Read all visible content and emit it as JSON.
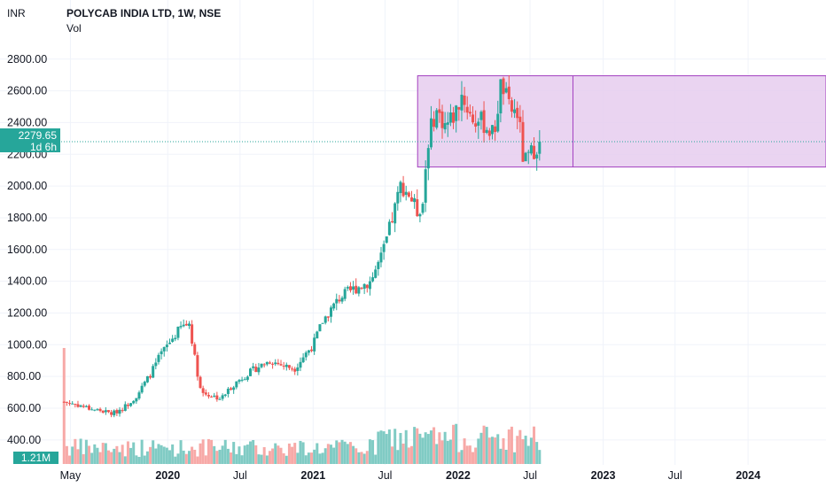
{
  "header": {
    "currency": "INR",
    "title": "POLYCAB INDIA LTD, 1W, NSE",
    "volume_label": "Vol"
  },
  "badges": {
    "last_price": "2279.65",
    "countdown": "1d 6h",
    "volume": "1.21M"
  },
  "colors": {
    "up": "#26a69a",
    "down": "#ef5350",
    "up_volume": "#80cbc4",
    "down_volume": "#f7a9a7",
    "rectangle_fill": "#e6cdee",
    "rectangle_border": "#a340c0",
    "price_line": "#26a69a"
  },
  "chart_data": {
    "type": "candlestick",
    "title": "POLYCAB INDIA LTD, 1W, NSE",
    "ylabel": "INR",
    "ylim": [
      360,
      2860
    ],
    "yticks": [
      "400.00",
      "600.00",
      "800.00",
      "1000.00",
      "1200.00",
      "1400.00",
      "1600.00",
      "1800.00",
      "2000.00",
      "2200.00",
      "2400.00",
      "2600.00",
      "2800.00"
    ],
    "x_range": [
      "2019-04-01",
      "2024-07-15"
    ],
    "xticks": [
      {
        "date": "2019-05-01",
        "label": "May",
        "year": false
      },
      {
        "date": "2020-01-01",
        "label": "2020",
        "year": true
      },
      {
        "date": "2020-07-01",
        "label": "Jul",
        "year": false
      },
      {
        "date": "2021-01-01",
        "label": "2021",
        "year": true
      },
      {
        "date": "2021-07-01",
        "label": "Jul",
        "year": false
      },
      {
        "date": "2022-01-01",
        "label": "2022",
        "year": true
      },
      {
        "date": "2022-07-01",
        "label": "Jul",
        "year": false
      },
      {
        "date": "2023-01-01",
        "label": "2023",
        "year": true
      },
      {
        "date": "2023-07-01",
        "label": "Jul",
        "year": false
      },
      {
        "date": "2024-01-01",
        "label": "2024",
        "year": true
      }
    ],
    "series_start": "2019-04-15",
    "interval": "1W",
    "last_price": 2279.65,
    "close_trend": [
      [
        "2019-04-15",
        640
      ],
      [
        "2019-05-15",
        625
      ],
      [
        "2019-06-15",
        600
      ],
      [
        "2019-07-15",
        585
      ],
      [
        "2019-08-15",
        565
      ],
      [
        "2019-09-15",
        610
      ],
      [
        "2019-10-15",
        680
      ],
      [
        "2019-11-15",
        800
      ],
      [
        "2019-12-15",
        940
      ],
      [
        "2020-01-10",
        1030
      ],
      [
        "2020-02-05",
        1115
      ],
      [
        "2020-02-25",
        1135
      ],
      [
        "2020-03-10",
        900
      ],
      [
        "2020-03-25",
        700
      ],
      [
        "2020-04-20",
        680
      ],
      [
        "2020-05-15",
        660
      ],
      [
        "2020-06-10",
        740
      ],
      [
        "2020-07-10",
        800
      ],
      [
        "2020-08-15",
        860
      ],
      [
        "2020-09-15",
        900
      ],
      [
        "2020-10-15",
        870
      ],
      [
        "2020-11-15",
        850
      ],
      [
        "2020-12-10",
        935
      ],
      [
        "2021-01-01",
        1000
      ],
      [
        "2021-01-25",
        1150
      ],
      [
        "2021-03-10",
        1300
      ],
      [
        "2021-04-20",
        1360
      ],
      [
        "2021-05-25",
        1400
      ],
      [
        "2021-06-25",
        1570
      ],
      [
        "2021-07-25",
        1850
      ],
      [
        "2021-08-10",
        2010
      ],
      [
        "2021-08-30",
        1950
      ],
      [
        "2021-09-20",
        1840
      ],
      [
        "2021-10-05",
        1900
      ],
      [
        "2021-10-15",
        2260
      ],
      [
        "2021-11-05",
        2480
      ],
      [
        "2021-12-01",
        2380
      ],
      [
        "2021-12-25",
        2460
      ],
      [
        "2022-01-10",
        2580
      ],
      [
        "2022-02-05",
        2420
      ],
      [
        "2022-03-05",
        2400
      ],
      [
        "2022-04-01",
        2320
      ],
      [
        "2022-04-20",
        2660
      ],
      [
        "2022-05-10",
        2480
      ],
      [
        "2022-06-01",
        2460
      ],
      [
        "2022-06-15",
        2140
      ],
      [
        "2022-07-05",
        2210
      ],
      [
        "2022-07-25",
        2279.65
      ]
    ],
    "volume": {
      "ylim": [
        0,
        10000000
      ],
      "spike": {
        "date": "2019-04-15",
        "value": 10000000
      },
      "last_value": 1210000
    },
    "rectangle": {
      "x_start": "2021-09-21",
      "x_end": "2024-07-15",
      "x_divider": "2022-10-17",
      "y_low": 2120,
      "y_high": 2695
    }
  }
}
